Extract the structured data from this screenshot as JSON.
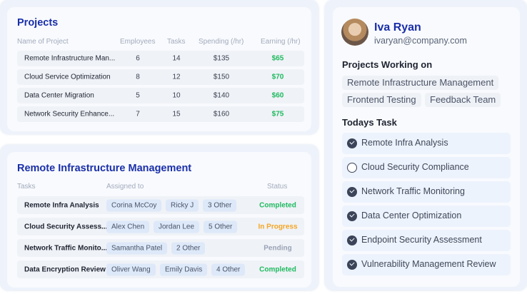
{
  "projects": {
    "title": "Projects",
    "headers": [
      "Name of Project",
      "Employees",
      "Tasks",
      "Spending (/hr)",
      "Earning (/hr)"
    ],
    "rows": [
      {
        "name": "Remote Infrastructure Man...",
        "employees": "6",
        "tasks": "14",
        "spending": "$135",
        "earning": "$65"
      },
      {
        "name": "Cloud Service Optimization",
        "employees": "8",
        "tasks": "12",
        "spending": "$150",
        "earning": "$70"
      },
      {
        "name": "Data Center Migration",
        "employees": "5",
        "tasks": "10",
        "spending": "$140",
        "earning": "$60"
      },
      {
        "name": "Network Security Enhance...",
        "employees": "7",
        "tasks": "15",
        "spending": "$160",
        "earning": "$75"
      }
    ]
  },
  "detail": {
    "title": "Remote Infrastructure Management",
    "headers": [
      "Tasks",
      "Assigned to",
      "Status"
    ],
    "rows": [
      {
        "task": "Remote Infra Analysis",
        "assignees": [
          "Corina McCoy",
          "Ricky J",
          "3 Other"
        ],
        "status": "Completed",
        "status_color": "#1fba5f"
      },
      {
        "task": "Cloud Security Assess...",
        "assignees": [
          "Alex Chen",
          "Jordan Lee",
          "5 Other"
        ],
        "status": "In Progress",
        "status_color": "#f5a623"
      },
      {
        "task": "Network Traffic Monito...",
        "assignees": [
          "Samantha Patel",
          "2 Other"
        ],
        "status": "Pending",
        "status_color": "#9aa3b5"
      },
      {
        "task": "Data Encryption Review",
        "assignees": [
          "Oliver Wang",
          "Emily Davis",
          "4 Other"
        ],
        "status": "Completed",
        "status_color": "#1fba5f"
      }
    ]
  },
  "profile": {
    "name": "Iva Ryan",
    "email": "ivaryan@company.com",
    "projects_label": "Projects Working on",
    "projects": [
      "Remote Infrastructure Management",
      "Frontend Testing",
      "Feedback Team"
    ],
    "tasks_label": "Todays Task",
    "tasks": [
      {
        "label": "Remote Infra Analysis",
        "done": true
      },
      {
        "label": "Cloud Security Compliance",
        "done": false
      },
      {
        "label": "Network Traffic Monitoring",
        "done": true
      },
      {
        "label": "Data Center Optimization",
        "done": true
      },
      {
        "label": "Endpoint Security Assessment",
        "done": true
      },
      {
        "label": "Vulnerability Management Review",
        "done": true
      }
    ]
  }
}
